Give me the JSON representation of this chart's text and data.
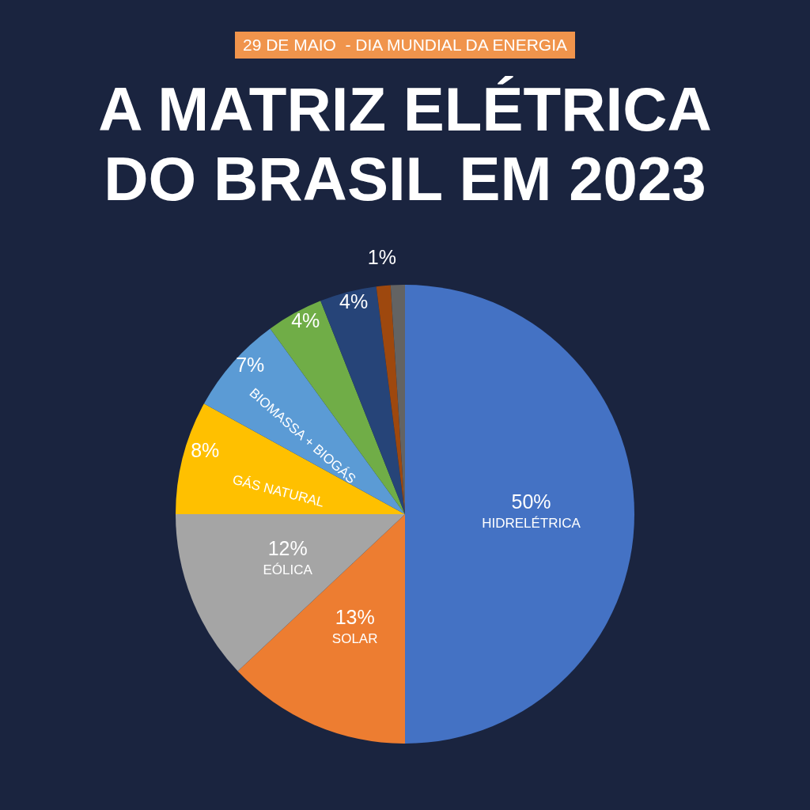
{
  "chart_data": {
    "type": "pie",
    "title": "A MATRIZ ELÉTRICA DO BRASIL EM 2023",
    "subtitle": "29 DE MAIO  - DIA MUNDIAL DA ENERGIA",
    "categories": [
      "HIDRELÉTRICA",
      "SOLAR",
      "EÓLICA",
      "GÁS NATURAL",
      "BIOMASSA + BIOGÁS",
      null,
      null,
      null,
      null
    ],
    "values": [
      50,
      13,
      12,
      8,
      7,
      4,
      4,
      1,
      1
    ],
    "colors": [
      "#4472c4",
      "#ed7d31",
      "#a5a5a5",
      "#ffc000",
      "#5b9bd5",
      "#70ad47",
      "#264478",
      "#9e480e",
      "#636363"
    ],
    "value_labels": [
      "50%",
      "13%",
      "12%",
      "8%",
      "7%",
      "4%",
      "4%",
      "1%",
      null
    ]
  }
}
